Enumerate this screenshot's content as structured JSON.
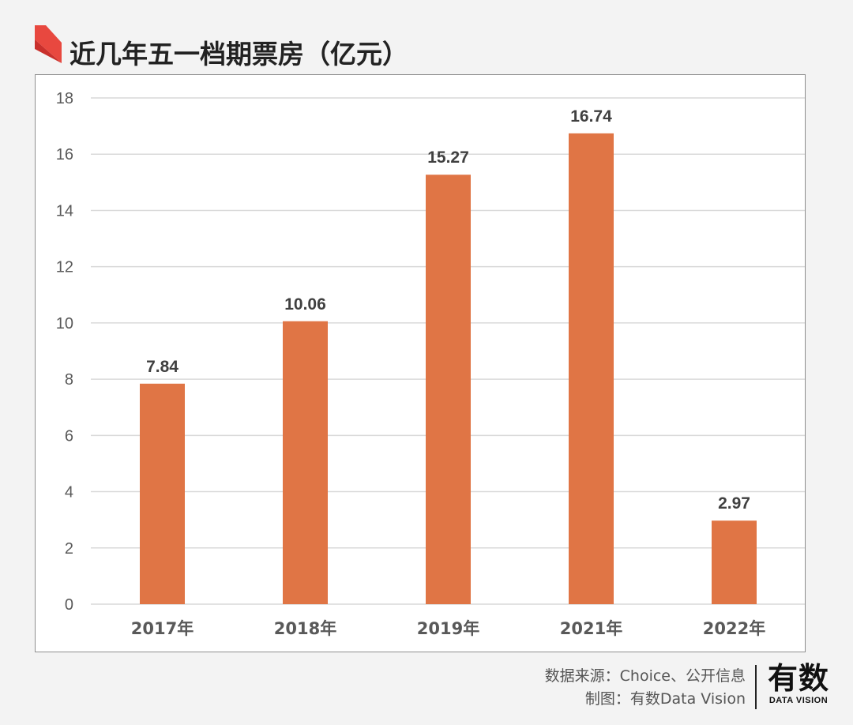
{
  "title": "近几年五一档期票房（亿元）",
  "colors": {
    "bar": "#e07545",
    "title_mark_light": "#e8483f",
    "title_mark_dark": "#c9302c",
    "grid": "#d9d9d9",
    "axis_text": "#595959",
    "label_text": "#404040"
  },
  "chart_data": {
    "type": "bar",
    "categories": [
      "2017年",
      "2018年",
      "2019年",
      "2021年",
      "2022年"
    ],
    "values": [
      7.84,
      10.06,
      15.27,
      16.74,
      2.97
    ],
    "value_labels": [
      "7.84",
      "10.06",
      "15.27",
      "16.74",
      "2.97"
    ],
    "ylim": [
      0,
      18
    ],
    "yticks": [
      0,
      2,
      4,
      6,
      8,
      10,
      12,
      14,
      16,
      18
    ],
    "grid": true,
    "legend": "none"
  },
  "footer": {
    "source": "数据来源：Choice、公开信息",
    "made_by": "制图：有数Data Vision"
  },
  "brand": {
    "cn": "有数",
    "en": "DATA VISION"
  }
}
